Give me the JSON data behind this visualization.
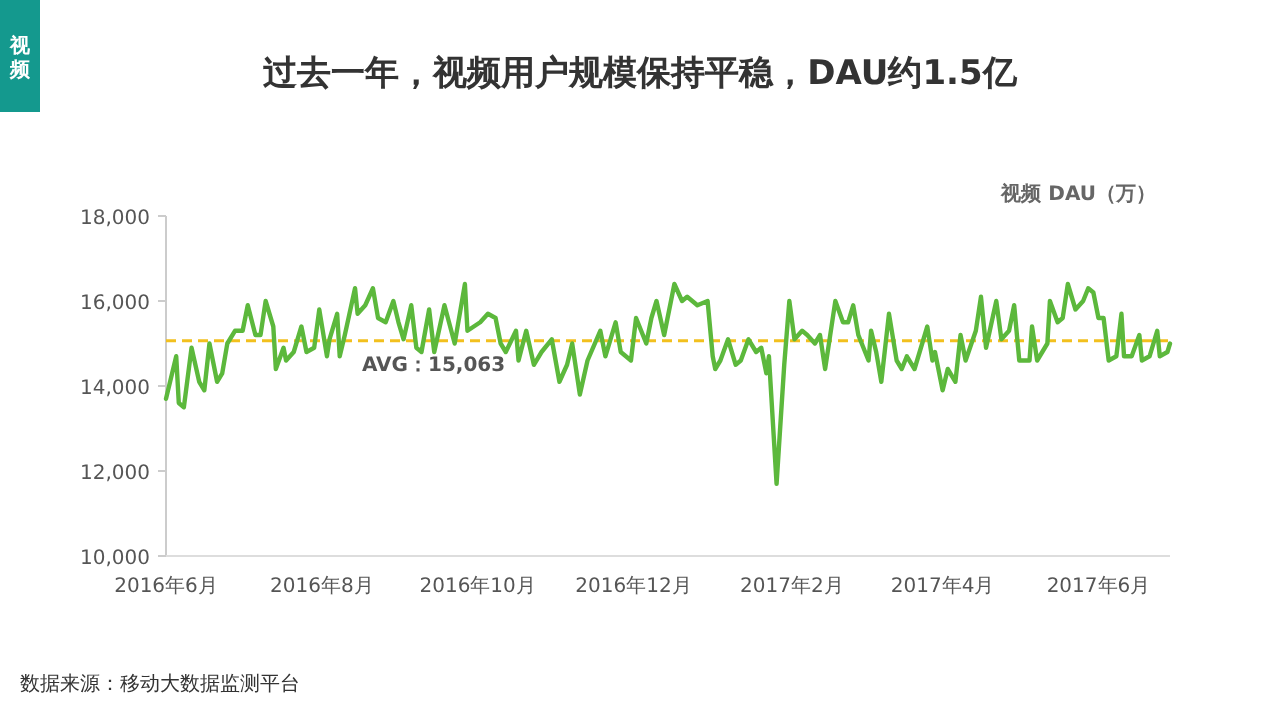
{
  "chart_data": {
    "type": "line",
    "title": "过去一年，视频用户规模保持平稳，DAU约1.5亿",
    "ylabel": "视频 DAU（万）",
    "annotations": [
      "视频",
      "数据来源：移动大数据监测平台"
    ],
    "x": [
      "2016-06-01",
      "2016-06-05",
      "2016-06-06",
      "2016-06-08",
      "2016-06-11",
      "2016-06-14",
      "2016-06-16",
      "2016-06-18",
      "2016-06-21",
      "2016-06-23",
      "2016-06-25",
      "2016-06-28",
      "2016-07-01",
      "2016-07-03",
      "2016-07-06",
      "2016-07-08",
      "2016-07-10",
      "2016-07-13",
      "2016-07-14",
      "2016-07-17",
      "2016-07-18",
      "2016-07-21",
      "2016-07-24",
      "2016-07-26",
      "2016-07-29",
      "2016-07-31",
      "2016-08-03",
      "2016-08-04",
      "2016-08-07",
      "2016-08-08",
      "2016-08-10",
      "2016-08-14",
      "2016-08-15",
      "2016-08-18",
      "2016-08-21",
      "2016-08-23",
      "2016-08-26",
      "2016-08-29",
      "2016-08-31",
      "2016-09-02",
      "2016-09-05",
      "2016-09-07",
      "2016-09-09",
      "2016-09-12",
      "2016-09-14",
      "2016-09-18",
      "2016-09-22",
      "2016-09-26",
      "2016-09-27",
      "2016-10-02",
      "2016-10-05",
      "2016-10-08",
      "2016-10-10",
      "2016-10-12",
      "2016-10-16",
      "2016-10-17",
      "2016-10-20",
      "2016-10-23",
      "2016-10-26",
      "2016-10-30",
      "2016-11-02",
      "2016-11-05",
      "2016-11-07",
      "2016-11-10",
      "2016-11-13",
      "2016-11-18",
      "2016-11-20",
      "2016-11-24",
      "2016-11-26",
      "2016-11-30",
      "2016-12-02",
      "2016-12-06",
      "2016-12-08",
      "2016-12-10",
      "2016-12-13",
      "2016-12-17",
      "2016-12-20",
      "2016-12-22",
      "2016-12-26",
      "2016-12-30",
      "2017-01-01",
      "2017-01-02",
      "2017-01-04",
      "2017-01-07",
      "2017-01-10",
      "2017-01-12",
      "2017-01-15",
      "2017-01-18",
      "2017-01-20",
      "2017-01-22",
      "2017-01-23",
      "2017-01-26",
      "2017-01-29",
      "2017-01-31",
      "2017-02-02",
      "2017-02-05",
      "2017-02-07",
      "2017-02-10",
      "2017-02-12",
      "2017-02-14",
      "2017-02-18",
      "2017-02-21",
      "2017-02-23",
      "2017-02-25",
      "2017-02-27",
      "2017-03-03",
      "2017-03-04",
      "2017-03-06",
      "2017-03-08",
      "2017-03-11",
      "2017-03-14",
      "2017-03-16",
      "2017-03-18",
      "2017-03-21",
      "2017-03-26",
      "2017-03-28",
      "2017-03-29",
      "2017-04-01",
      "2017-04-03",
      "2017-04-06",
      "2017-04-08",
      "2017-04-10",
      "2017-04-14",
      "2017-04-16",
      "2017-04-18",
      "2017-04-22",
      "2017-04-24",
      "2017-04-27",
      "2017-04-29",
      "2017-05-01",
      "2017-05-05",
      "2017-05-06",
      "2017-05-08",
      "2017-05-12",
      "2017-05-13",
      "2017-05-16",
      "2017-05-18",
      "2017-05-20",
      "2017-05-23",
      "2017-05-26",
      "2017-05-28",
      "2017-05-30",
      "2017-06-01",
      "2017-06-03",
      "2017-06-05",
      "2017-06-08",
      "2017-06-10",
      "2017-06-11",
      "2017-06-14",
      "2017-06-17",
      "2017-06-18",
      "2017-06-21",
      "2017-06-24",
      "2017-06-25",
      "2017-06-28",
      "2017-06-29"
    ],
    "series": [
      {
        "color": "#5cb83c",
        "values": [
          13700,
          14700,
          13600,
          13500,
          14900,
          14100,
          13900,
          15000,
          14100,
          14300,
          15000,
          15300,
          15300,
          15900,
          15200,
          15200,
          16000,
          15400,
          14400,
          14900,
          14600,
          14800,
          15400,
          14800,
          14900,
          15800,
          14700,
          15100,
          15700,
          14700,
          15200,
          16300,
          15700,
          15900,
          16300,
          15600,
          15500,
          16000,
          15500,
          15100,
          15900,
          14900,
          14800,
          15800,
          14800,
          15900,
          15000,
          16400,
          15300,
          15500,
          15700,
          15600,
          15000,
          14800,
          15300,
          14600,
          15300,
          14500,
          14800,
          15100,
          14100,
          14500,
          15000,
          13800,
          14600,
          15300,
          14700,
          15500,
          14800,
          14600,
          15600,
          15000,
          15600,
          16000,
          15200,
          16400,
          16000,
          16100,
          15900,
          16000,
          14700,
          14400,
          14600,
          15100,
          14500,
          14600,
          15100,
          14800,
          14900,
          14300,
          14700,
          11700,
          14500,
          16000,
          15100,
          15300,
          15200,
          15000,
          15200,
          14400,
          16000,
          15500,
          15500,
          15900,
          15200,
          14600,
          15300,
          14800,
          14100,
          15700,
          14600,
          14400,
          14700,
          14400,
          15400,
          14600,
          14800,
          13900,
          14400,
          14100,
          15200,
          14600,
          15300,
          16100,
          14900,
          16000,
          15100,
          15300,
          15900,
          14600,
          14600,
          15400,
          14600,
          15000,
          16000,
          15500,
          15600,
          16400,
          15800,
          16000,
          16300,
          16200,
          15600,
          15600,
          14600,
          14700,
          15700,
          14700,
          14700,
          15200,
          14600,
          14700,
          15300,
          14700,
          14800,
          15000
        ]
      }
    ],
    "xlim": [
      "2016-06-01",
      "2017-06-29"
    ],
    "xticks": [
      {
        "value": "2016-06-01",
        "label": "2016年6月"
      },
      {
        "value": "2016-08-01",
        "label": "2016年8月"
      },
      {
        "value": "2016-10-01",
        "label": "2016年10月"
      },
      {
        "value": "2016-12-01",
        "label": "2016年12月"
      },
      {
        "value": "2017-02-01",
        "label": "2017年2月"
      },
      {
        "value": "2017-04-01",
        "label": "2017年4月"
      },
      {
        "value": "2017-06-01",
        "label": "2017年6月"
      }
    ],
    "ylim": [
      10000,
      18000
    ],
    "yticks": [
      {
        "value": 10000,
        "label": "10,000"
      },
      {
        "value": 12000,
        "label": "12,000"
      },
      {
        "value": 14000,
        "label": "14,000"
      },
      {
        "value": 16000,
        "label": "16,000"
      },
      {
        "value": 18000,
        "label": "18,000"
      }
    ],
    "ref_lines": [
      {
        "axis": "y",
        "value": 15063,
        "label": "AVG：15,063",
        "color": "#f2c01e",
        "line_style": "dashed"
      }
    ]
  }
}
